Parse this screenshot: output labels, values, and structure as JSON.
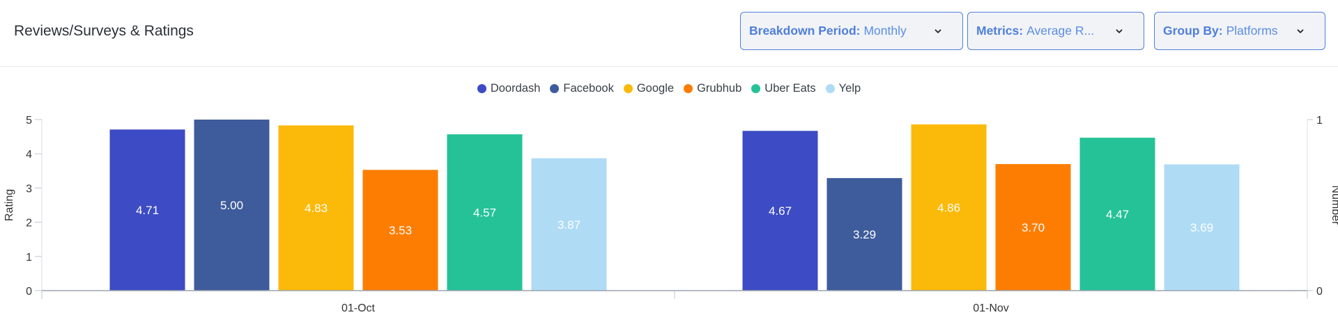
{
  "header": {
    "title": "Reviews/Surveys & Ratings",
    "breakdown": {
      "label": "Breakdown Period:",
      "value": "Monthly"
    },
    "metrics": {
      "label": "Metrics:",
      "value": "Average R..."
    },
    "groupby": {
      "label": "Group By:",
      "value": "Platforms"
    }
  },
  "chart_data": {
    "type": "bar",
    "categories": [
      "01-Oct",
      "01-Nov"
    ],
    "series": [
      {
        "name": "Doordash",
        "color": "#3d4bc4",
        "values": [
          4.71,
          4.67
        ]
      },
      {
        "name": "Facebook",
        "color": "#3e5c9b",
        "values": [
          5.0,
          3.29
        ]
      },
      {
        "name": "Google",
        "color": "#fbb909",
        "values": [
          4.83,
          4.86
        ]
      },
      {
        "name": "Grubhub",
        "color": "#fd7d03",
        "values": [
          3.53,
          3.7
        ]
      },
      {
        "name": "Uber Eats",
        "color": "#25c297",
        "values": [
          4.57,
          4.47
        ]
      },
      {
        "name": "Yelp",
        "color": "#afdbf5",
        "values": [
          3.87,
          3.69
        ]
      }
    ],
    "data_labels": [
      [
        "4.71",
        "5.00",
        "4.83",
        "3.53",
        "4.57",
        "3.87"
      ],
      [
        "4.67",
        "3.29",
        "4.86",
        "3.70",
        "4.47",
        "3.69"
      ]
    ],
    "ylabel": "Rating",
    "ylim": [
      0,
      5
    ],
    "yticks": [
      "0",
      "1",
      "2",
      "3",
      "4",
      "5"
    ],
    "y2label": "Number",
    "y2ticks": [
      "0",
      "1"
    ],
    "legend_position": "top-center",
    "grid": false
  }
}
